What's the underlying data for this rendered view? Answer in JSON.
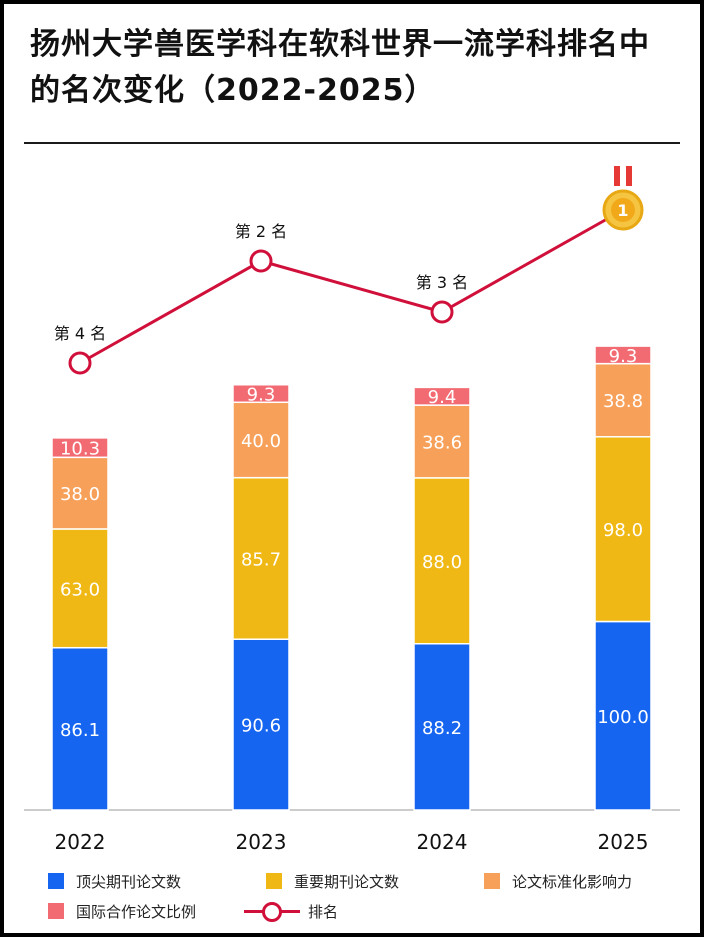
{
  "title": "扬州大学兽医学科在软科世界一流学科排名中的名次变化（2022-2025）",
  "colors": {
    "top_journal": "#1565f0",
    "important_journal": "#f0b814",
    "normalized_impact": "#f7a05a",
    "intl_collab": "#f26b73",
    "rank_line": "#d0103a"
  },
  "chart_data": {
    "type": "bar",
    "stacked": true,
    "categories": [
      "2022",
      "2023",
      "2024",
      "2025"
    ],
    "series": [
      {
        "name": "顶尖期刊论文数",
        "values": [
          86.1,
          90.6,
          88.2,
          100.0
        ],
        "labels": [
          "86.1",
          "90.6",
          "88.2",
          "100.0"
        ]
      },
      {
        "name": "重要期刊论文数",
        "values": [
          63.0,
          85.7,
          88.0,
          98.0
        ],
        "labels": [
          "63.0",
          "85.7",
          "88.0",
          "98.0"
        ]
      },
      {
        "name": "论文标准化影响力",
        "values": [
          38.0,
          40.0,
          38.6,
          38.8
        ],
        "labels": [
          "38.0",
          "40.0",
          "38.6",
          "38.8"
        ]
      },
      {
        "name": "国际合作论文比例",
        "values": [
          10.3,
          9.3,
          9.4,
          9.3
        ],
        "labels": [
          "10.3",
          "9.3",
          "9.4",
          "9.3"
        ]
      }
    ],
    "line_series": {
      "name": "排名",
      "values": [
        4,
        2,
        3,
        1
      ],
      "labels": [
        "第 4 名",
        "第 2 名",
        "第 3 名",
        ""
      ]
    },
    "legend_position": "bottom",
    "grid": false
  },
  "legend": {
    "items": [
      "顶尖期刊论文数",
      "重要期刊论文数",
      "论文标准化影响力",
      "国际合作论文比例",
      "排名"
    ]
  },
  "medal_number": "1"
}
